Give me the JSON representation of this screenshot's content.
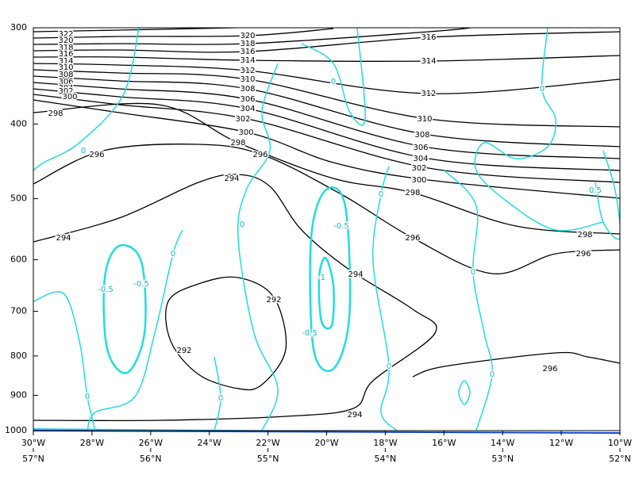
{
  "chart_data": {
    "type": "contour",
    "ylim": [
      300,
      1000
    ],
    "yticks": [
      300,
      400,
      500,
      600,
      700,
      800,
      900,
      1000
    ],
    "y_log": true,
    "xlim": [
      -30,
      -10
    ],
    "xticks": [
      {
        "value": -30,
        "label": "30°W"
      },
      {
        "value": -28,
        "label": "28°W"
      },
      {
        "value": -26,
        "label": "26°W"
      },
      {
        "value": -24,
        "label": "24°W"
      },
      {
        "value": -22,
        "label": "22°W"
      },
      {
        "value": -20,
        "label": "20°W"
      },
      {
        "value": -18,
        "label": "18°W"
      },
      {
        "value": -16,
        "label": "16°W"
      },
      {
        "value": -14,
        "label": "14°W"
      },
      {
        "value": -12,
        "label": "12°W"
      },
      {
        "value": -10,
        "label": "10°W"
      }
    ],
    "x2lim": [
      57,
      52
    ],
    "x2ticks": [
      {
        "value": 57,
        "label": "57°N"
      },
      {
        "value": 56,
        "label": "56°N"
      },
      {
        "value": 55,
        "label": "55°N"
      },
      {
        "value": 54,
        "label": "54°N"
      },
      {
        "value": 53,
        "label": "53°N"
      },
      {
        "value": 52,
        "label": "52°N"
      }
    ],
    "contours": [
      {
        "level": 322,
        "color": "#000000"
      },
      {
        "level": 320,
        "color": "#000000"
      },
      {
        "level": 318,
        "color": "#000000"
      },
      {
        "level": 316,
        "color": "#000000"
      },
      {
        "level": 314,
        "color": "#000000"
      },
      {
        "level": 312,
        "color": "#000000"
      },
      {
        "level": 310,
        "color": "#000000"
      },
      {
        "level": 308,
        "color": "#000000"
      },
      {
        "level": 306,
        "color": "#000000"
      },
      {
        "level": 304,
        "color": "#000000"
      },
      {
        "level": 302,
        "color": "#000000"
      },
      {
        "level": 300,
        "color": "#000000"
      },
      {
        "level": 298,
        "color": "#000000"
      },
      {
        "level": 296,
        "color": "#000000"
      },
      {
        "level": 294,
        "color": "#000000"
      },
      {
        "level": 292,
        "color": "#000000"
      },
      {
        "level": 0.5,
        "color": "#22dddd"
      },
      {
        "level": 0,
        "color": "#22dddd"
      },
      {
        "level": -0.5,
        "color": "#22dddd"
      },
      {
        "level": -1,
        "color": "#22dddd"
      }
    ]
  }
}
